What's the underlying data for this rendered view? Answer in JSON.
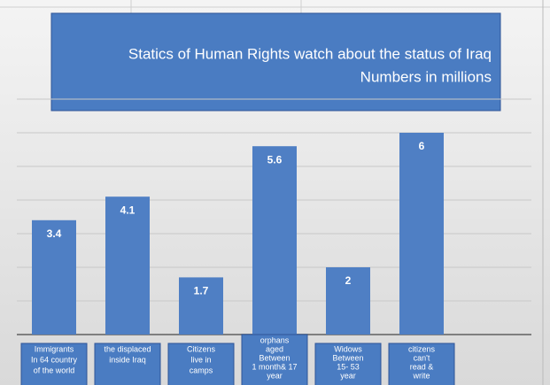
{
  "chart_data": {
    "type": "bar",
    "title": "Statics of Human Rights watch about the status of Iraq",
    "subtitle": "Numbers in millions",
    "categories": [
      [
        "Immigrants",
        "In 64 country",
        "of the world"
      ],
      [
        "the displaced",
        "inside Iraq"
      ],
      [
        "Citizens",
        "live in",
        "camps"
      ],
      [
        "orphans",
        "aged",
        "Between",
        "1 month& 17",
        "year"
      ],
      [
        "Widows",
        "Between",
        "15- 53",
        "year"
      ],
      [
        "citizens",
        "can't",
        "read &",
        "write"
      ]
    ],
    "values": [
      3.4,
      4.1,
      1.7,
      5.6,
      2,
      6
    ],
    "color": "#4f7fc4",
    "ylim": [
      0,
      7
    ],
    "yticks": [
      0,
      1,
      2,
      3,
      4,
      5,
      6,
      7
    ],
    "grid": true
  }
}
